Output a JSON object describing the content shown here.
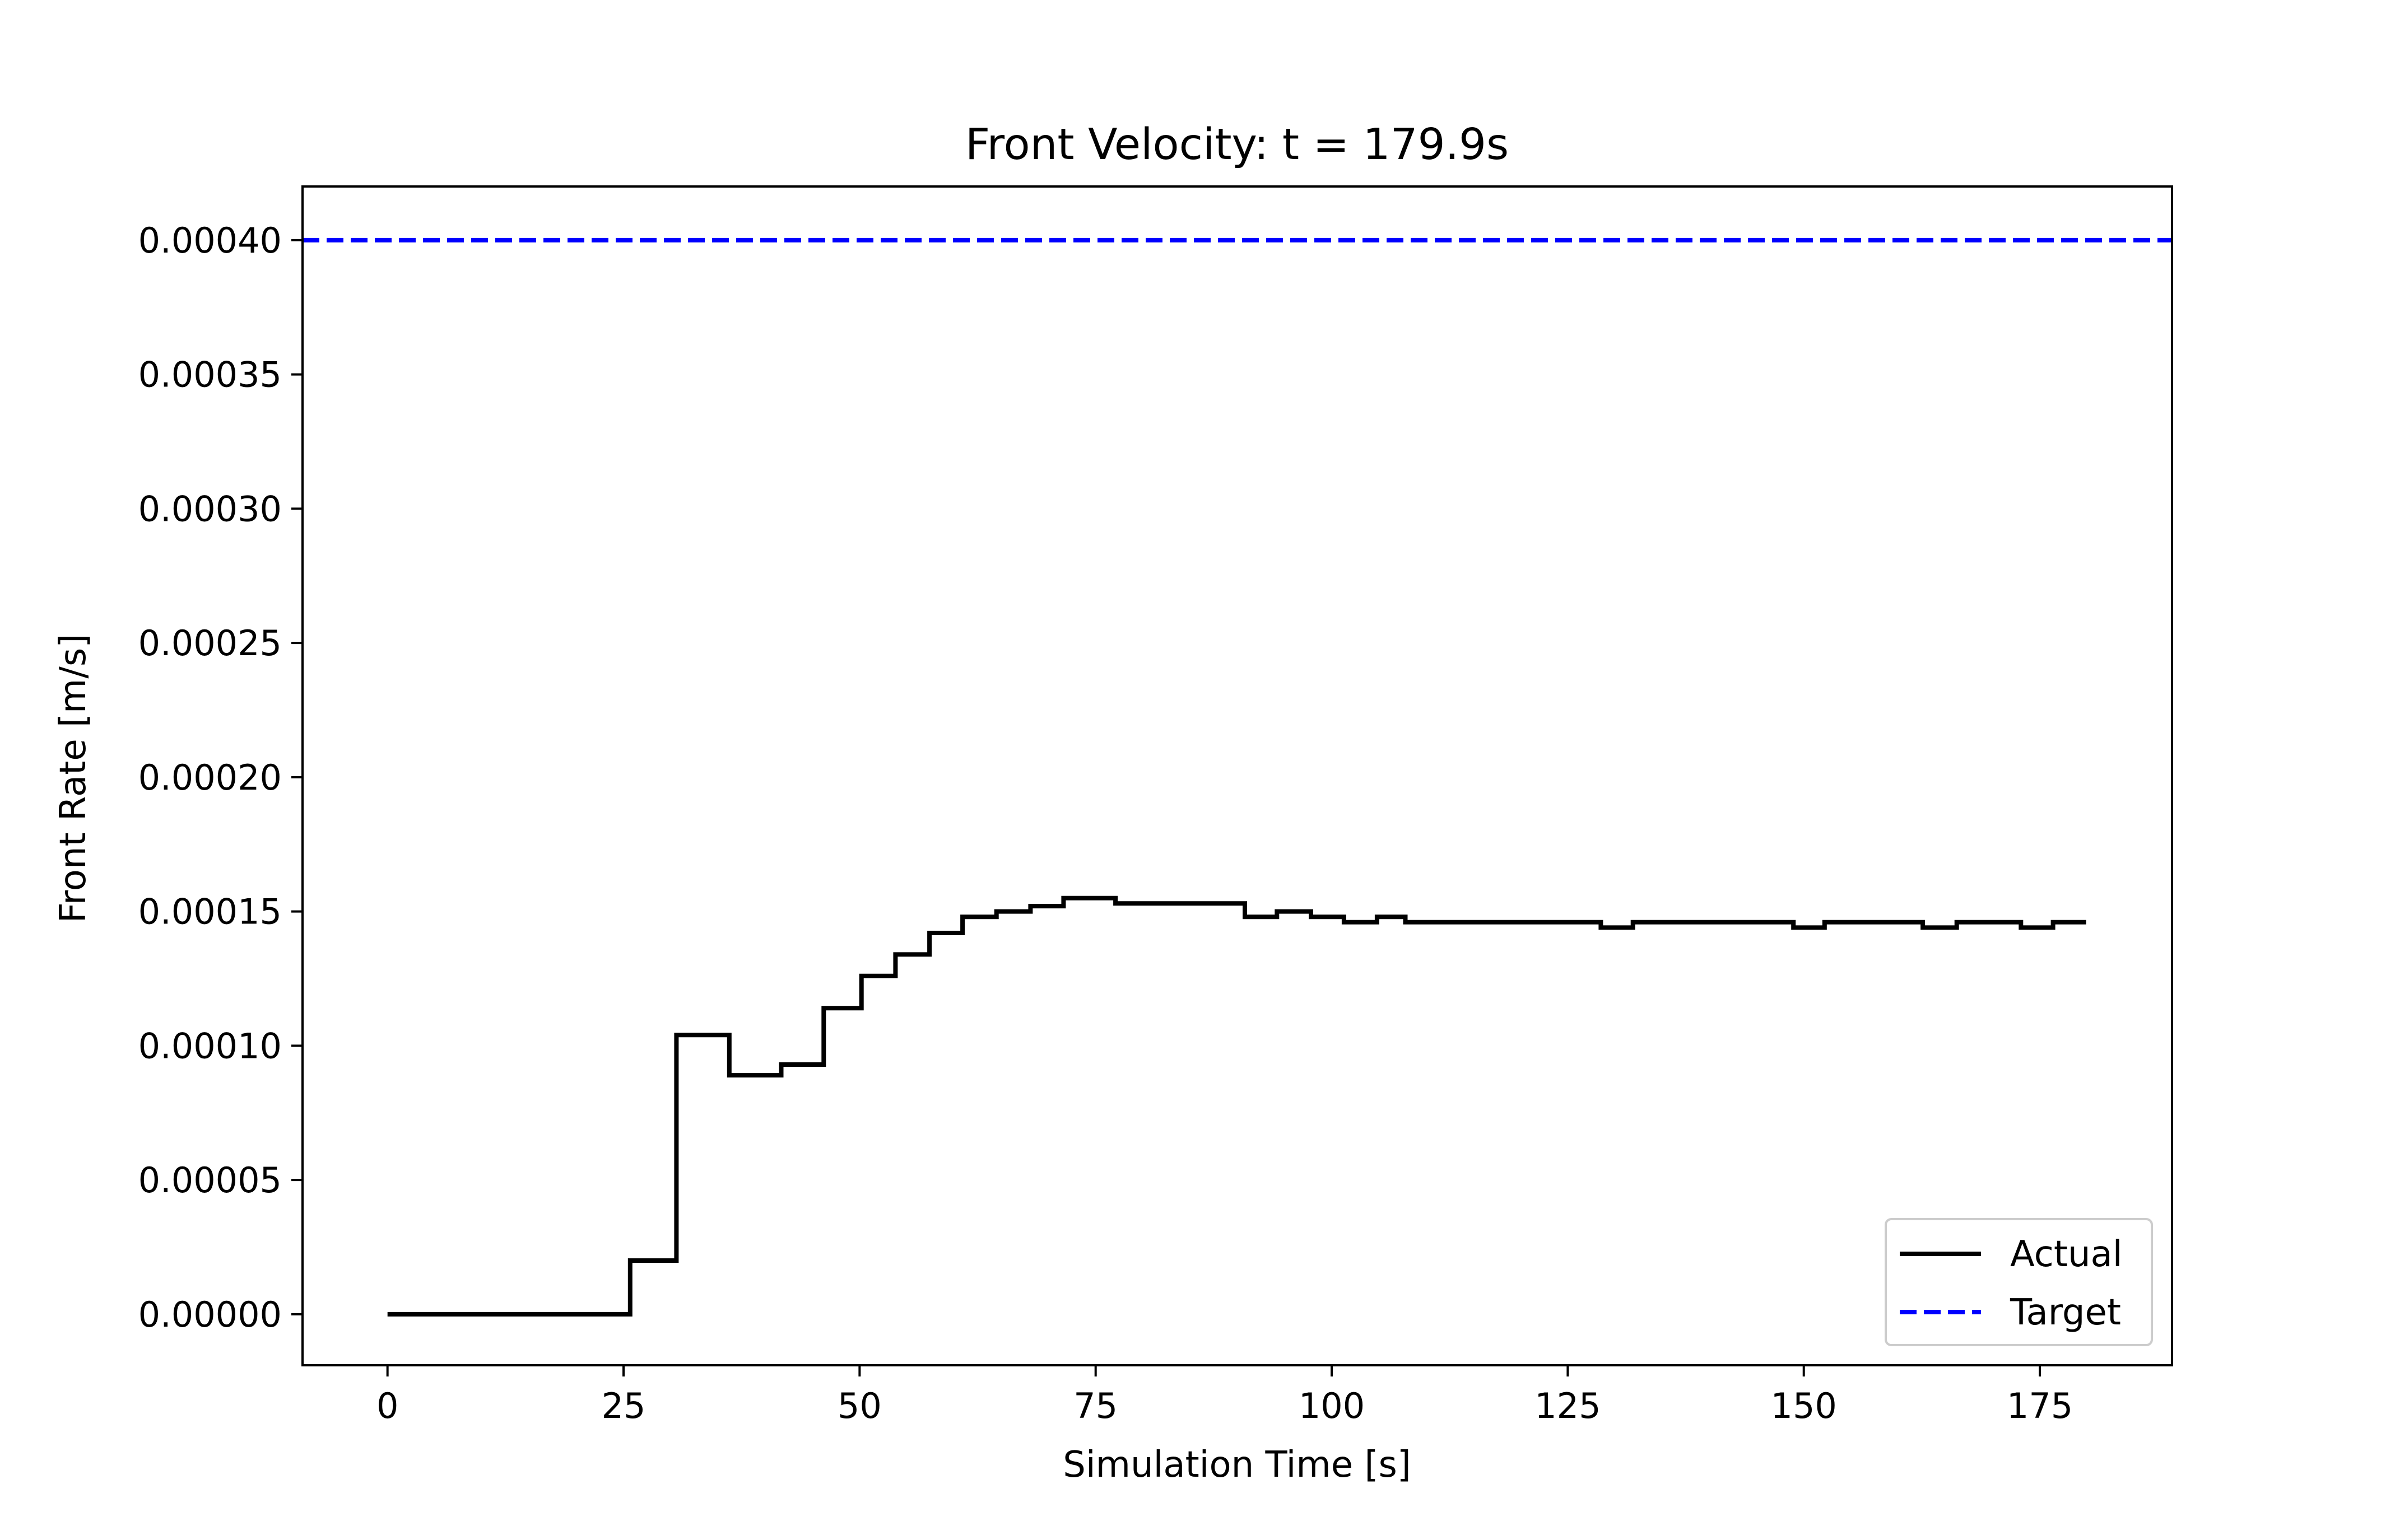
{
  "chart_data": {
    "type": "line",
    "title": "Front Velocity: t = 179.9s",
    "xlabel": "Simulation Time [s]",
    "ylabel": "Front Rate [m/s]",
    "xlim": [
      -9,
      189
    ],
    "ylim": [
      -1.9e-05,
      0.00042
    ],
    "grid": false,
    "legend_position": "lower-right",
    "x_ticks": [
      0,
      25,
      50,
      75,
      100,
      125,
      150,
      175
    ],
    "x_tick_labels": [
      "0",
      "25",
      "50",
      "75",
      "100",
      "125",
      "150",
      "175"
    ],
    "y_ticks": [
      0,
      5e-05,
      0.0001,
      0.00015,
      0.0002,
      0.00025,
      0.0003,
      0.00035,
      0.0004
    ],
    "y_tick_labels": [
      "0.00000",
      "0.00005",
      "0.00010",
      "0.00015",
      "0.00020",
      "0.00025",
      "0.00030",
      "0.00035",
      "0.00040"
    ],
    "series": [
      {
        "name": "Actual",
        "style": "step",
        "color": "#000000",
        "x": [
          0,
          25.7,
          30.6,
          36.2,
          41.7,
          46.2,
          50.2,
          53.8,
          57.4,
          60.9,
          64.5,
          68.1,
          71.6,
          77.1,
          90.8,
          94.2,
          97.8,
          101.3,
          104.8,
          107.8,
          128.5,
          131.9,
          148.9,
          152.2,
          162.6,
          166.2,
          173.0,
          176.4,
          179.9
        ],
        "y": [
          0.0,
          2e-05,
          0.000104,
          8.9e-05,
          9.3e-05,
          0.000114,
          0.000126,
          0.000134,
          0.000142,
          0.000148,
          0.00015,
          0.000152,
          0.000155,
          0.000153,
          0.000148,
          0.00015,
          0.000148,
          0.000146,
          0.000148,
          0.000146,
          0.000144,
          0.000146,
          0.000144,
          0.000146,
          0.000144,
          0.000146,
          0.000144,
          0.000146,
          0.000146
        ]
      },
      {
        "name": "Target",
        "style": "dashed",
        "color": "#0000ff",
        "y_constant": 0.0004
      }
    ]
  }
}
